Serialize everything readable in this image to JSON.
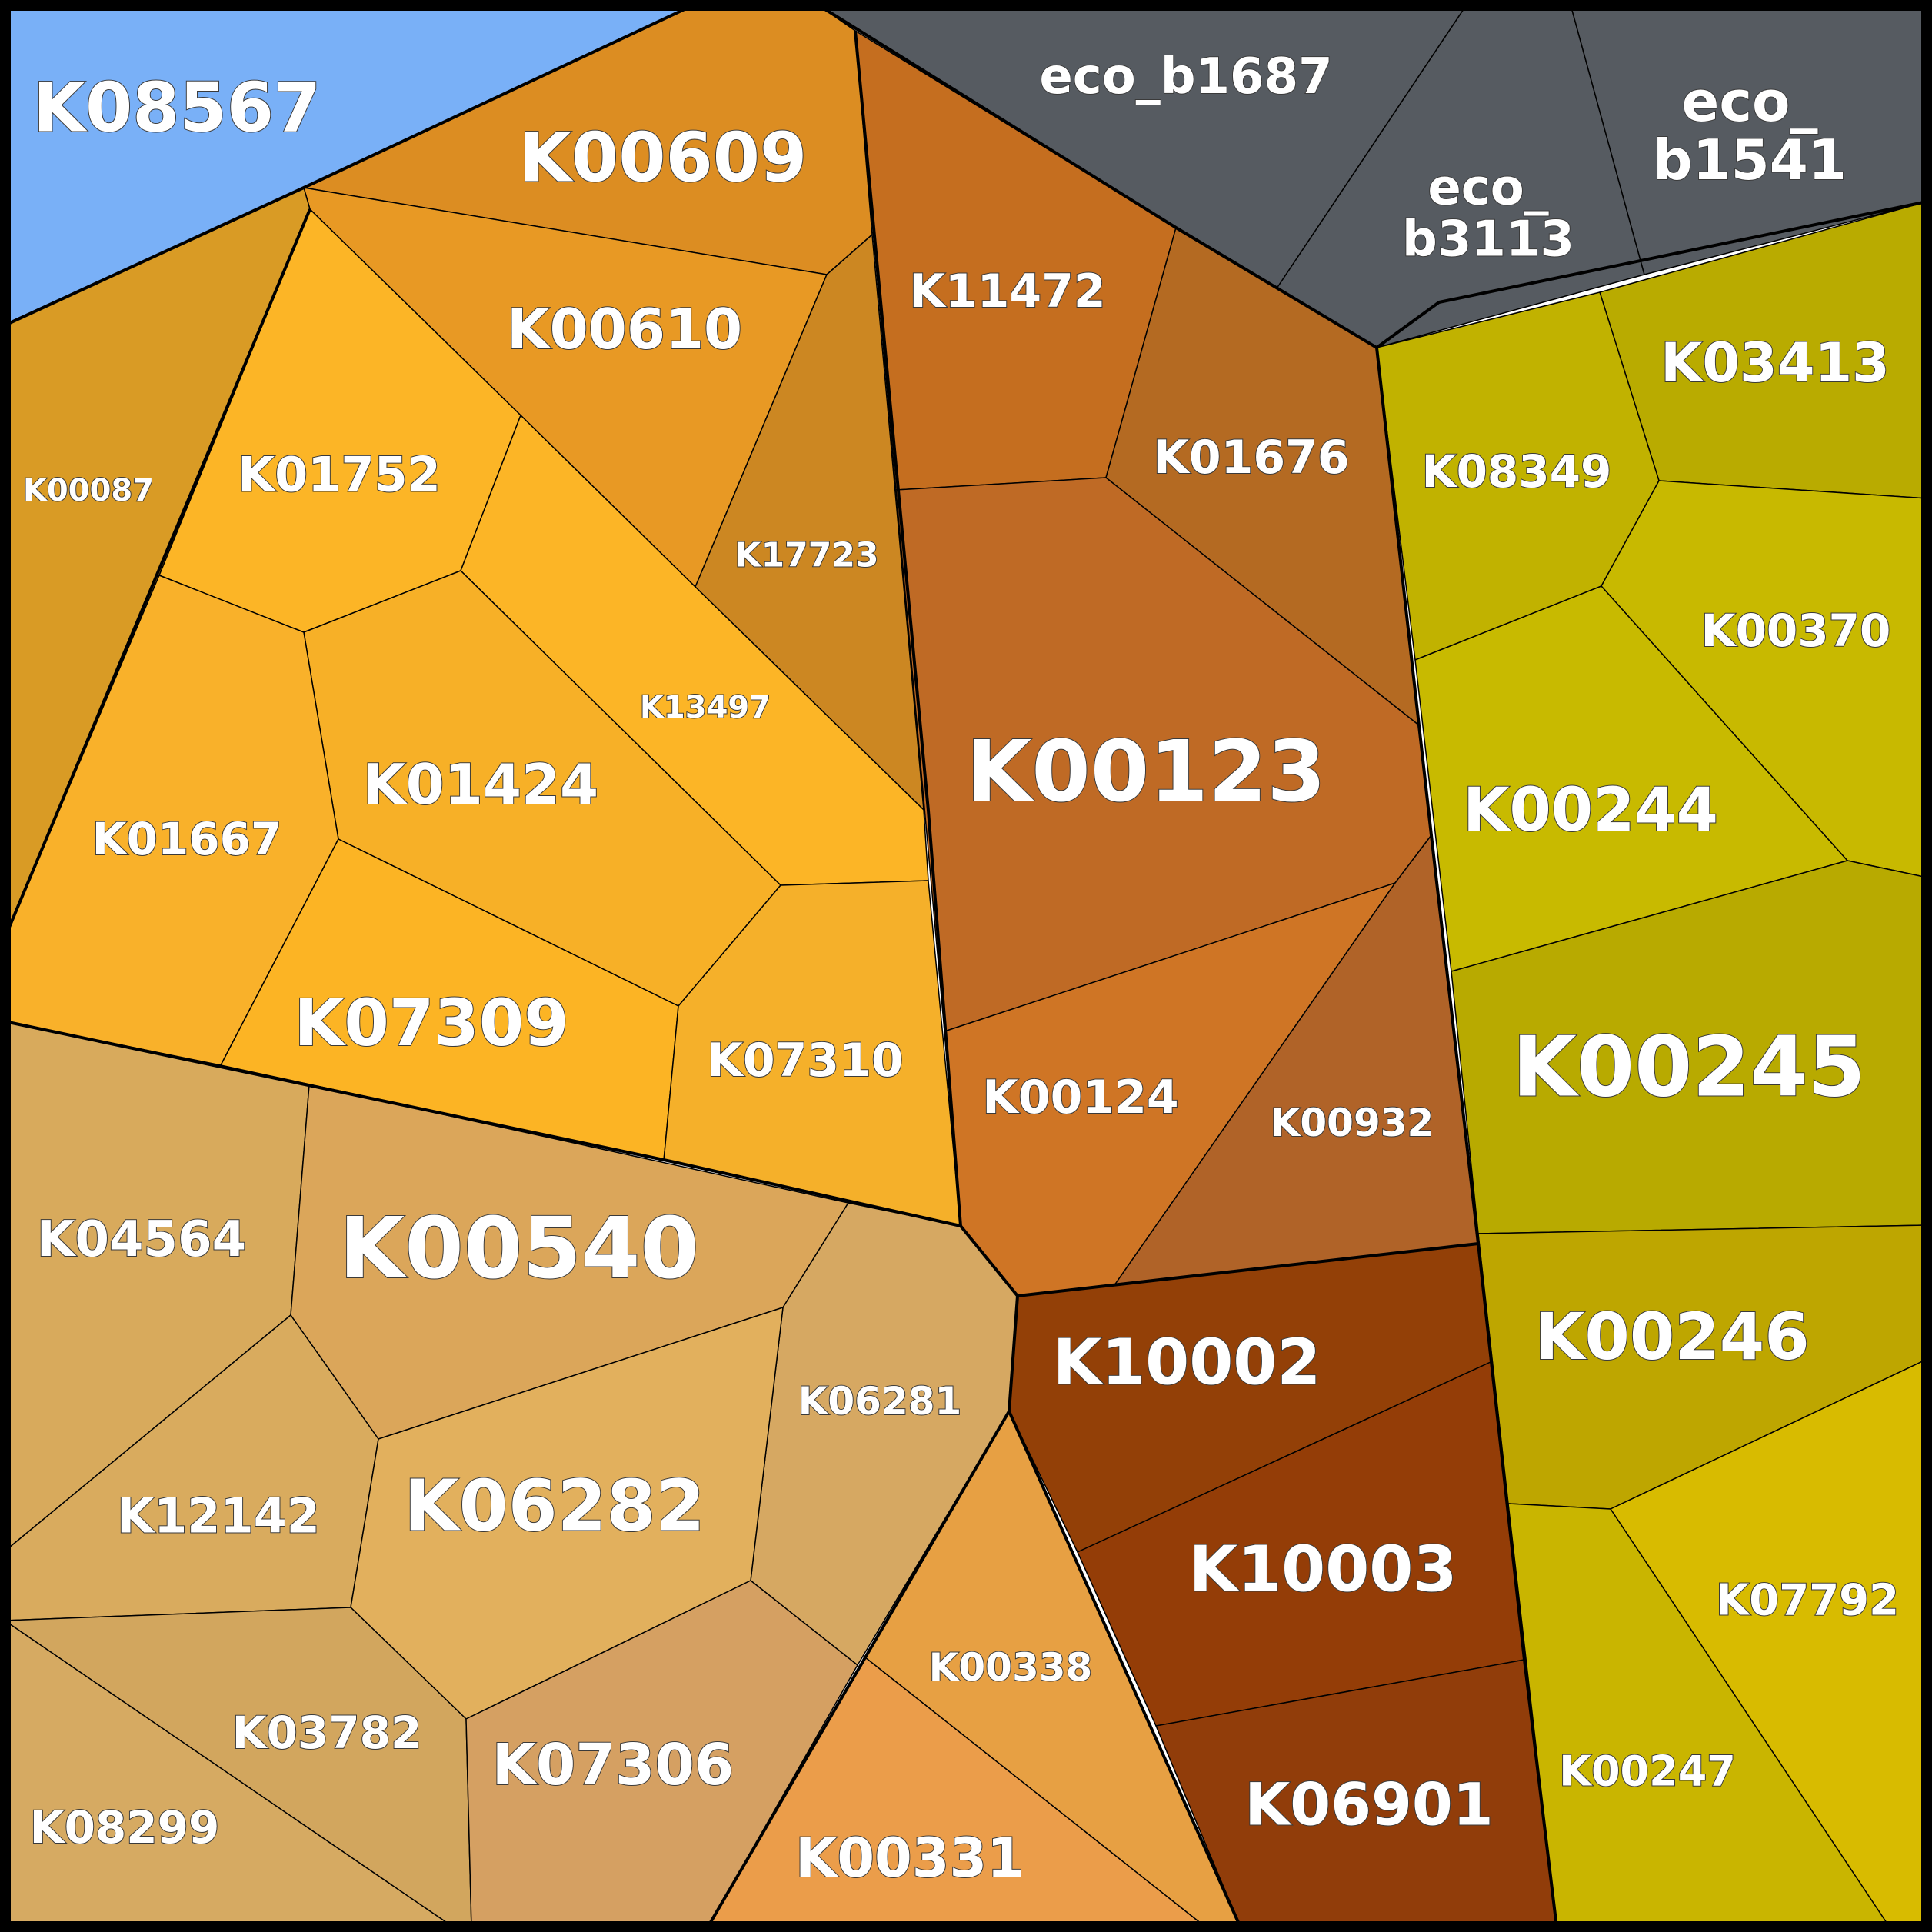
{
  "title": "",
  "cells": [
    {
      "id": "K08567",
      "label": "K08567",
      "color": "#79b0f7"
    },
    {
      "id": "K00609",
      "label": "K00609",
      "color": "#dc8d22"
    },
    {
      "id": "K00610",
      "label": "K00610",
      "color": "#e89924"
    },
    {
      "id": "K17723",
      "label": "K17723",
      "color": "#cc8722"
    },
    {
      "id": "K00087",
      "label": "K00087",
      "color": "#d99b25"
    },
    {
      "id": "K01752",
      "label": "K01752",
      "color": "#fcb526"
    },
    {
      "id": "K13497",
      "label": "K13497",
      "color": "#fcb526"
    },
    {
      "id": "K01424",
      "label": "K01424",
      "color": "#f7b027"
    },
    {
      "id": "K01667",
      "label": "K01667",
      "color": "#f9b12a"
    },
    {
      "id": "K07309",
      "label": "K07309",
      "color": "#fcb424"
    },
    {
      "id": "K07310",
      "label": "K07310",
      "color": "#f5b02a"
    },
    {
      "id": "eco_b1687",
      "label": "eco_b1687",
      "color": "#565b61"
    },
    {
      "id": "eco_b3113",
      "label": "eco_\nb3113",
      "color": "#565b61"
    },
    {
      "id": "eco_b1541",
      "label": "eco_\nb1541",
      "color": "#565b61"
    },
    {
      "id": "K11472",
      "label": "K11472",
      "color": "#c56e1f"
    },
    {
      "id": "K01676",
      "label": "K01676",
      "color": "#b46a22"
    },
    {
      "id": "K00123",
      "label": "K00123",
      "color": "#bf6a25"
    },
    {
      "id": "K00124",
      "label": "K00124",
      "color": "#cf7525"
    },
    {
      "id": "K00932",
      "label": "K00932",
      "color": "#b06328"
    },
    {
      "id": "K03413",
      "label": "K03413",
      "color": "#b9ab00"
    },
    {
      "id": "K08349",
      "label": "K08349",
      "color": "#c1b200"
    },
    {
      "id": "K00370",
      "label": "K00370",
      "color": "#c8b900"
    },
    {
      "id": "K00244",
      "label": "K00244",
      "color": "#c8ba00"
    },
    {
      "id": "K00245",
      "label": "K00245",
      "color": "#b8aa00"
    },
    {
      "id": "K00246",
      "label": "K00246",
      "color": "#bea600"
    },
    {
      "id": "K07792",
      "label": "K07792",
      "color": "#d8bb00"
    },
    {
      "id": "K00247",
      "label": "K00247",
      "color": "#c9b500"
    },
    {
      "id": "K10002",
      "label": "K10002",
      "color": "#934007"
    },
    {
      "id": "K10003",
      "label": "K10003",
      "color": "#943d07"
    },
    {
      "id": "K06901",
      "label": "K06901",
      "color": "#913d0a"
    },
    {
      "id": "K04564",
      "label": "K04564",
      "color": "#d8aa5c"
    },
    {
      "id": "K00540",
      "label": "K00540",
      "color": "#dba65a"
    },
    {
      "id": "K06281",
      "label": "K06281",
      "color": "#d6a862"
    },
    {
      "id": "K12142",
      "label": "K12142",
      "color": "#d9ab5e"
    },
    {
      "id": "K06282",
      "label": "K06282",
      "color": "#e2b05d"
    },
    {
      "id": "K03782",
      "label": "K03782",
      "color": "#d2a65e"
    },
    {
      "id": "K08299",
      "label": "K08299",
      "color": "#d6aa62"
    },
    {
      "id": "K07306",
      "label": "K07306",
      "color": "#d5a062"
    },
    {
      "id": "K00338",
      "label": "K00338",
      "color": "#e7a043"
    },
    {
      "id": "K00331",
      "label": "K00331",
      "color": "#eb9d4a"
    }
  ]
}
